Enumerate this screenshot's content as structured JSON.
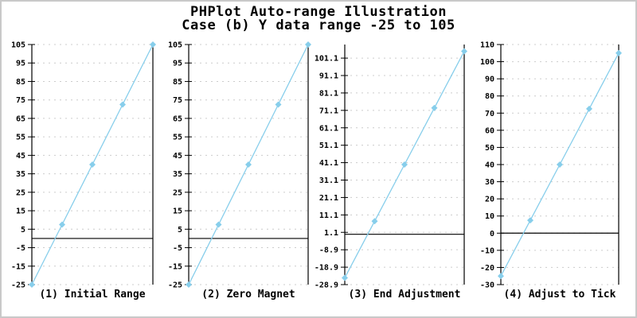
{
  "title": {
    "line1": "PHPlot Auto-range Illustration",
    "line2": "Case (b) Y data range -25 to 105"
  },
  "colors": {
    "series": "#87CEEB",
    "grid": "#CCCCCC",
    "axis": "#000000",
    "zero_line": "#000000",
    "background": "#FFFFFF",
    "image_border": "#C9C9C9"
  },
  "chart_data": {
    "type": "line",
    "title": "PHPlot Auto-range Illustration",
    "subtitle": "Case (b) Y data range -25 to 105",
    "x": [
      1,
      2,
      3,
      4,
      5
    ],
    "values": [
      -25,
      7.5,
      40,
      72.5,
      105
    ],
    "data_range": [
      -25,
      105
    ],
    "marker": "diamond",
    "grid": "dashed-horizontal",
    "legend": "none",
    "x_tick_labels": [],
    "charts": [
      {
        "x_title": "(1) Initial Range",
        "ylim": [
          -25,
          105
        ],
        "y_ticks": [
          -25,
          -15,
          -5,
          5,
          15,
          25,
          35,
          45,
          55,
          65,
          75,
          85,
          95,
          105
        ],
        "zero_line_y": 0
      },
      {
        "x_title": "(2) Zero Magnet",
        "ylim": [
          -25,
          105
        ],
        "y_ticks": [
          -25,
          -15,
          -5,
          5,
          15,
          25,
          35,
          45,
          55,
          65,
          75,
          85,
          95,
          105
        ],
        "zero_line_y": 0
      },
      {
        "x_title": "(3) End Adjustment",
        "ylim": [
          -28.9,
          108.9
        ],
        "y_ticks": [
          -28.9,
          -18.9,
          -8.9,
          1.1,
          11.1,
          21.1,
          31.1,
          41.1,
          51.1,
          61.1,
          71.1,
          81.1,
          91.1,
          101.1
        ],
        "zero_line_y": 0
      },
      {
        "x_title": "(4) Adjust to Tick",
        "ylim": [
          -30,
          110
        ],
        "y_ticks": [
          -30,
          -20,
          -10,
          0,
          10,
          20,
          30,
          40,
          50,
          60,
          70,
          80,
          90,
          100,
          110
        ],
        "zero_line_y": 0
      }
    ]
  }
}
